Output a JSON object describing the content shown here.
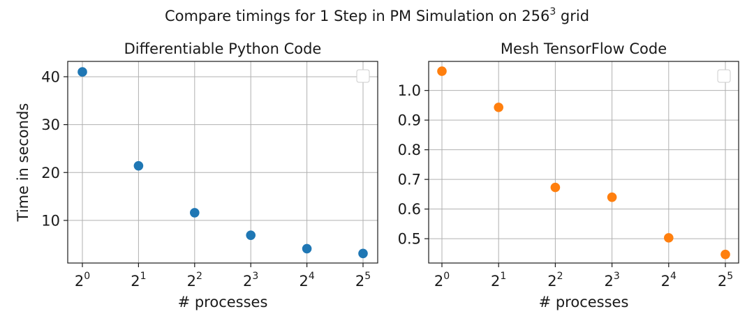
{
  "figure": {
    "title_main": "Compare timings for 1 Step in PM Simulation on 256",
    "title_sup": "3",
    "title_tail": " grid"
  },
  "chart_data": [
    {
      "type": "scatter",
      "title": "Differentiable Python Code",
      "xlabel": "# processes",
      "ylabel": "Time in seconds",
      "x": [
        1,
        2,
        4,
        8,
        16,
        32
      ],
      "x_scale": "log2",
      "x_tick_labels": [
        {
          "base": "2",
          "exp": "0"
        },
        {
          "base": "2",
          "exp": "1"
        },
        {
          "base": "2",
          "exp": "2"
        },
        {
          "base": "2",
          "exp": "3"
        },
        {
          "base": "2",
          "exp": "4"
        },
        {
          "base": "2",
          "exp": "5"
        }
      ],
      "y_ticks": [
        10,
        20,
        30,
        40
      ],
      "y_tick_labels": [
        "10",
        "20",
        "30",
        "40"
      ],
      "ylim": [
        1.1,
        43.2
      ],
      "series": [
        {
          "name": "",
          "values": [
            41.0,
            21.4,
            11.6,
            6.9,
            4.1,
            3.1
          ],
          "color": "#1f77b4"
        }
      ],
      "grid": true,
      "legend": "top-right (empty)"
    },
    {
      "type": "scatter",
      "title": "Mesh TensorFlow Code",
      "xlabel": "# processes",
      "ylabel": "",
      "x": [
        1,
        2,
        4,
        8,
        16,
        32
      ],
      "x_scale": "log2",
      "x_tick_labels": [
        {
          "base": "2",
          "exp": "0"
        },
        {
          "base": "2",
          "exp": "1"
        },
        {
          "base": "2",
          "exp": "2"
        },
        {
          "base": "2",
          "exp": "3"
        },
        {
          "base": "2",
          "exp": "4"
        },
        {
          "base": "2",
          "exp": "5"
        }
      ],
      "y_ticks": [
        0.5,
        0.6,
        0.7,
        0.8,
        0.9,
        1.0
      ],
      "y_tick_labels": [
        "0.5",
        "0.6",
        "0.7",
        "0.8",
        "0.9",
        "1.0"
      ],
      "ylim": [
        0.418,
        1.098
      ],
      "series": [
        {
          "name": "",
          "values": [
            1.065,
            0.943,
            0.673,
            0.64,
            0.503,
            0.447
          ],
          "color": "#ff7f0e"
        }
      ],
      "grid": true,
      "legend": "top-right (empty)"
    }
  ]
}
